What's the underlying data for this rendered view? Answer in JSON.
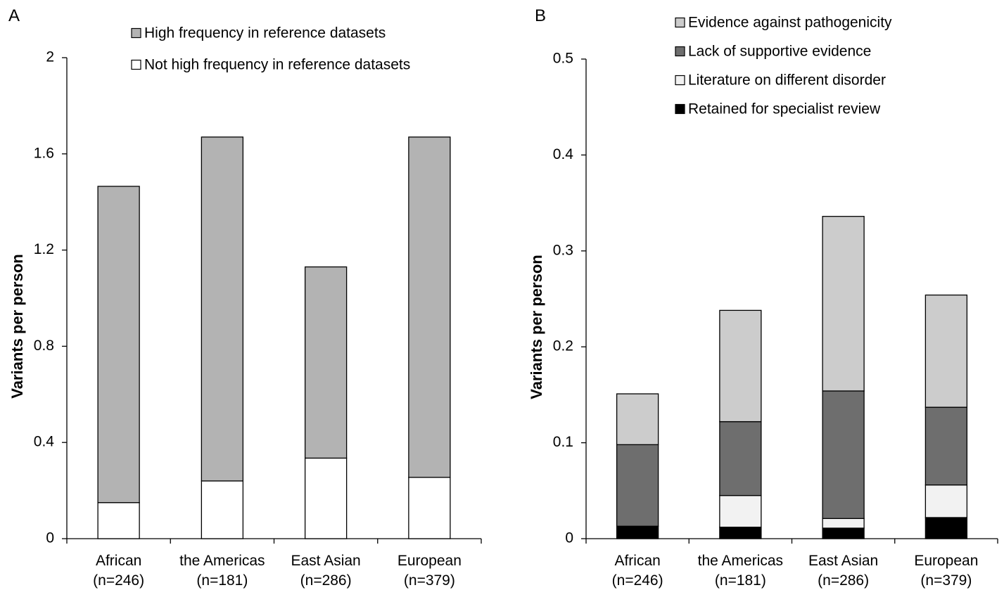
{
  "chart_data": [
    {
      "panel_label": "A",
      "type": "bar",
      "stacked": true,
      "ylabel": "Variants per person",
      "xlabel": "",
      "ylim": [
        0,
        2
      ],
      "yticks": [
        "0",
        "0.4",
        "0.8",
        "1.2",
        "1.6",
        "2"
      ],
      "ytick_values": [
        0,
        0.4,
        0.8,
        1.2,
        1.6,
        2
      ],
      "categories": [
        {
          "name": "African",
          "n": "(n=246)"
        },
        {
          "name": "the Americas",
          "n": "(n=181)"
        },
        {
          "name": "East Asian",
          "n": "(n=286)"
        },
        {
          "name": "European",
          "n": "(n=379)"
        }
      ],
      "series": [
        {
          "name": "Not high frequency in reference datasets",
          "color": "#ffffff",
          "values": [
            0.15,
            0.24,
            0.335,
            0.255
          ]
        },
        {
          "name": "High frequency in reference datasets",
          "color": "#b3b3b3",
          "values": [
            1.315,
            1.43,
            0.795,
            1.415
          ]
        }
      ],
      "legend_order": [
        1,
        0
      ],
      "legend_position": "top-right",
      "grid": false
    },
    {
      "panel_label": "B",
      "type": "bar",
      "stacked": true,
      "ylabel": "Variants per person",
      "xlabel": "",
      "ylim": [
        0,
        0.5
      ],
      "yticks": [
        "0",
        "0.1",
        "0.2",
        "0.3",
        "0.4",
        "0.5"
      ],
      "ytick_values": [
        0,
        0.1,
        0.2,
        0.3,
        0.4,
        0.5
      ],
      "categories": [
        {
          "name": "African",
          "n": "(n=246)"
        },
        {
          "name": "the Americas",
          "n": "(n=181)"
        },
        {
          "name": "East Asian",
          "n": "(n=286)"
        },
        {
          "name": "European",
          "n": "(n=379)"
        }
      ],
      "series": [
        {
          "name": "Retained for specialist review",
          "color": "#000000",
          "values": [
            0.013,
            0.012,
            0.011,
            0.022
          ]
        },
        {
          "name": "Literature on different disorder",
          "color": "#f2f2f2",
          "values": [
            0.0,
            0.033,
            0.01,
            0.034
          ]
        },
        {
          "name": "Lack of supportive evidence",
          "color": "#6e6e6e",
          "values": [
            0.085,
            0.077,
            0.133,
            0.081
          ]
        },
        {
          "name": "Evidence against pathogenicity",
          "color": "#cccccc",
          "values": [
            0.053,
            0.116,
            0.182,
            0.117
          ]
        }
      ],
      "legend_order": [
        3,
        2,
        1,
        0
      ],
      "legend_position": "top-right",
      "grid": false
    }
  ]
}
